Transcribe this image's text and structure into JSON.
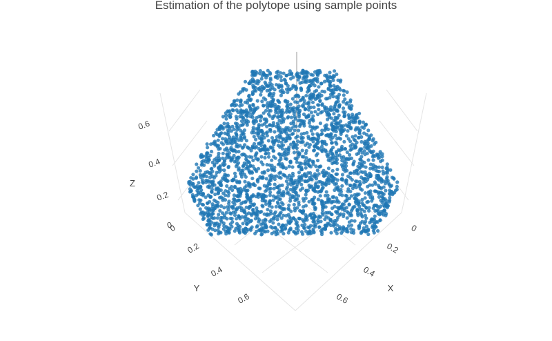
{
  "chart_data": {
    "type": "scatter",
    "title": "Estimation of the polytope using sample points",
    "axes": {
      "x": {
        "label": "X",
        "ticks": [
          "0",
          "0.2",
          "0.4",
          "0.6"
        ],
        "range": [
          0,
          0.75
        ]
      },
      "y": {
        "label": "Y",
        "ticks": [
          "0",
          "0.2",
          "0.4",
          "0.6"
        ],
        "range": [
          0,
          0.75
        ]
      },
      "z": {
        "label": "Z",
        "ticks": [
          "0",
          "0.2",
          "0.4",
          "0.6"
        ],
        "range": [
          0,
          0.75
        ]
      }
    },
    "shape": "truncated-octahedron-like polytope, points sampled within x,y,z in [0,0.75]",
    "marker_color": "#1f77b4",
    "grid": true
  }
}
